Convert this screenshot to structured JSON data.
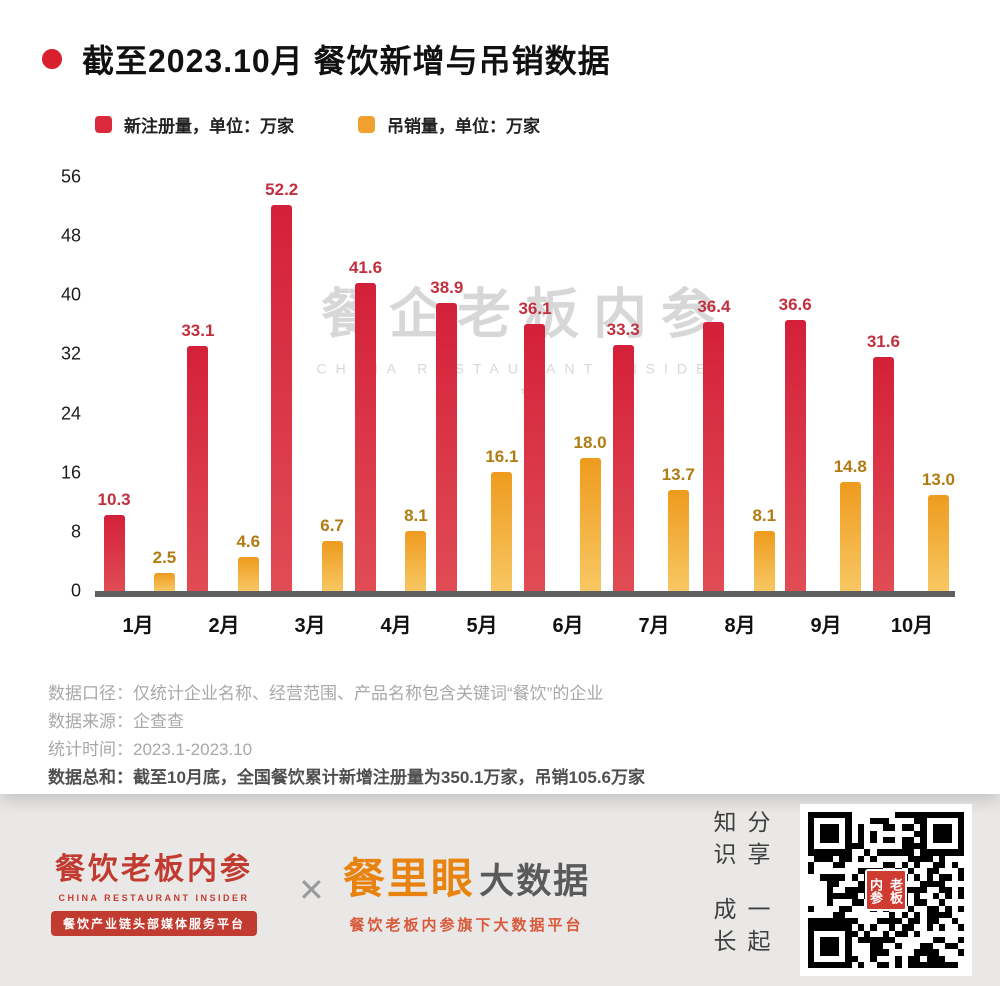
{
  "header": {
    "title": "截至2023.10月 餐饮新增与吊销数据"
  },
  "legend": [
    {
      "label": "新注册量，单位：万家",
      "color": "#d9293a"
    },
    {
      "label": "吊销量，单位：万家",
      "color": "#f0a02f"
    }
  ],
  "chart_data": {
    "type": "bar",
    "title": "截至2023.10月 餐饮新增与吊销数据",
    "categories": [
      "1月",
      "2月",
      "3月",
      "4月",
      "5月",
      "6月",
      "7月",
      "8月",
      "9月",
      "10月"
    ],
    "series": [
      {
        "name": "新注册量",
        "key": "new-registrations",
        "unit": "万家",
        "color": "#d9293a",
        "values": [
          10.3,
          33.1,
          52.2,
          41.6,
          38.9,
          36.1,
          33.3,
          36.4,
          36.6,
          31.6
        ]
      },
      {
        "name": "吊销量",
        "key": "cancellations",
        "unit": "万家",
        "color": "#f0a02f",
        "values": [
          2.5,
          4.6,
          6.7,
          8.1,
          16.1,
          18.0,
          13.7,
          8.1,
          14.8,
          13.0
        ]
      }
    ],
    "ylim": [
      0,
      56
    ],
    "yticks": [
      0,
      8,
      16,
      24,
      32,
      40,
      48,
      56
    ],
    "grid": false,
    "legend_position": "top"
  },
  "watermark": {
    "line1": "餐企老板内参",
    "line2": "CHINA RESTAURANT INSIDER",
    "star": "★"
  },
  "notes": {
    "line1": "数据口径：仅统计企业名称、经营范围、产品名称包含关键词“餐饮”的企业",
    "line2": "数据来源：企查查",
    "line3": "统计时间：2023.1-2023.10",
    "line4": "数据总和：截至10月底，全国餐饮累计新增注册量为350.1万家，吊销105.6万家"
  },
  "footer": {
    "brand_cn": "餐饮老板内参",
    "brand_en": "CHINA RESTAURANT INSIDER",
    "brand_tagline": "餐饮产业链头部媒体服务平台",
    "cross": "✕",
    "product_name": "餐里眼",
    "product_suffix": "大数据",
    "product_tagline": "餐饮老板内参旗下大数据平台",
    "vertical_text_right_column": "分享知识",
    "vertical_text_left_column": "一起成长",
    "qr_label": "老板内参"
  }
}
